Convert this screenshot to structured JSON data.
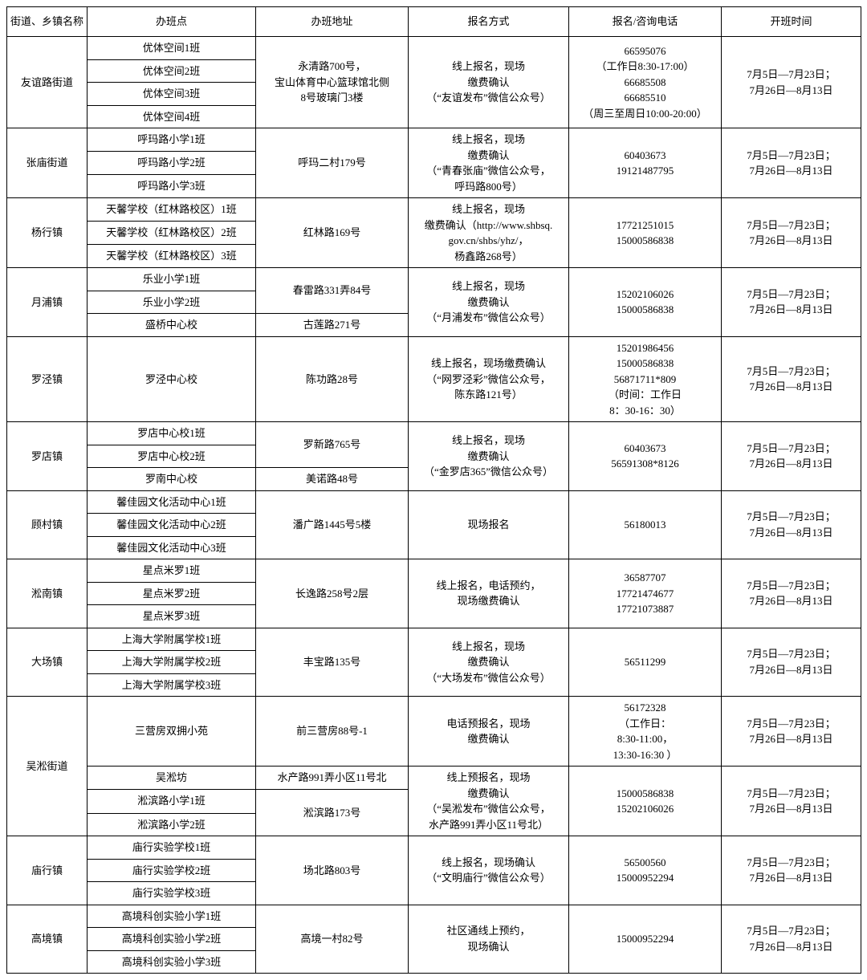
{
  "headers": {
    "district": "街道、乡镇名称",
    "classPoint": "办班点",
    "address": "办班地址",
    "method": "报名方式",
    "phone": "报名/咨询电话",
    "time": "开班时间"
  },
  "commonTime": "7月5日—7月23日；\n7月26日—8月13日",
  "rows": {
    "r1": {
      "district": "友谊路街道",
      "classes": [
        "优体空间1班",
        "优体空间2班",
        "优体空间3班",
        "优体空间4班"
      ],
      "address": "永清路700号，\n宝山体育中心篮球馆北侧\n8号玻璃门3楼",
      "method": "线上报名，现场\n缴费确认\n（“友谊发布”微信公众号）",
      "phone": "66595076\n（工作日8:30-17:00）\n66685508\n66685510\n（周三至周日10:00-20:00）"
    },
    "r2": {
      "district": "张庙街道",
      "classes": [
        "呼玛路小学1班",
        "呼玛路小学2班",
        "呼玛路小学3班"
      ],
      "address": "呼玛二村179号",
      "method": "线上报名，现场\n缴费确认\n（“青春张庙”微信公众号，\n呼玛路800号）",
      "phone": "60403673\n19121487795"
    },
    "r3": {
      "district": "杨行镇",
      "classes": [
        "天馨学校（红林路校区）1班",
        "天馨学校（红林路校区）2班",
        "天馨学校（红林路校区）3班"
      ],
      "address": "红林路169号",
      "method": "线上报名，现场\n缴费确认（http://www.shbsq.\ngov.cn/shbs/yhz/，\n杨鑫路268号）",
      "phone": "17721251015\n15000586838"
    },
    "r4": {
      "district": "月浦镇",
      "classes": [
        "乐业小学1班",
        "乐业小学2班",
        "盛桥中心校"
      ],
      "addr1": "春雷路331弄84号",
      "addr2": "古莲路271号",
      "method": "线上报名，现场\n缴费确认\n（“月浦发布”微信公众号）",
      "phone": "15202106026\n15000586838"
    },
    "r5": {
      "district": "罗泾镇",
      "classes": [
        "罗泾中心校"
      ],
      "address": "陈功路28号",
      "method": "线上报名，现场缴费确认\n（“网罗泾彩”微信公众号，\n陈东路121号）",
      "phone": "15201986456\n15000586838\n56871711*809\n（时间：工作日\n8：30-16：30）"
    },
    "r6": {
      "district": "罗店镇",
      "classes": [
        "罗店中心校1班",
        "罗店中心校2班",
        "罗南中心校"
      ],
      "addr1": "罗新路765号",
      "addr2": "美诺路48号",
      "method": "线上报名，现场\n缴费确认\n（“金罗店365”微信公众号）",
      "phone": "60403673\n56591308*8126"
    },
    "r7": {
      "district": "顾村镇",
      "classes": [
        "馨佳园文化活动中心1班",
        "馨佳园文化活动中心2班",
        "馨佳园文化活动中心3班"
      ],
      "address": "潘广路1445号5楼",
      "method": "现场报名",
      "phone": "56180013"
    },
    "r8": {
      "district": "淞南镇",
      "classes": [
        "星点米罗1班",
        "星点米罗2班",
        "星点米罗3班"
      ],
      "address": "长逸路258号2层",
      "method": "线上报名，电话预约，\n现场缴费确认",
      "phone": "36587707\n17721474677\n17721073887"
    },
    "r9": {
      "district": "大场镇",
      "classes": [
        "上海大学附属学校1班",
        "上海大学附属学校2班",
        "上海大学附属学校3班"
      ],
      "address": "丰宝路135号",
      "method": "线上报名，现场\n缴费确认\n（“大场发布”微信公众号）",
      "phone": "56511299"
    },
    "r10": {
      "district": "吴淞街道",
      "classes": [
        "三营房双拥小苑",
        "吴淞坊",
        "淞滨路小学1班",
        "淞滨路小学2班"
      ],
      "addr1": "前三营房88号-1",
      "addr2": "水产路991弄小区11号北",
      "addr3": "淞滨路173号",
      "method1": "电话预报名，现场\n缴费确认",
      "method2": "线上预报名，现场\n缴费确认\n（“吴淞发布”微信公众号，\n水产路991弄小区11号北）",
      "phone1": "56172328\n（工作日：\n8:30-11:00，\n13:30-16:30 ）",
      "phone2": "15000586838\n15202106026"
    },
    "r11": {
      "district": "庙行镇",
      "classes": [
        "庙行实验学校1班",
        "庙行实验学校2班",
        "庙行实验学校3班"
      ],
      "address": "场北路803号",
      "method": "线上报名，现场确认\n（“文明庙行”微信公众号）",
      "phone": "56500560\n15000952294"
    },
    "r12": {
      "district": "高境镇",
      "classes": [
        "高境科创实验小学1班",
        "高境科创实验小学2班",
        "高境科创实验小学3班"
      ],
      "address": "高境一村82号",
      "method": "社区通线上预约，\n现场确认",
      "phone": "15000952294"
    }
  }
}
